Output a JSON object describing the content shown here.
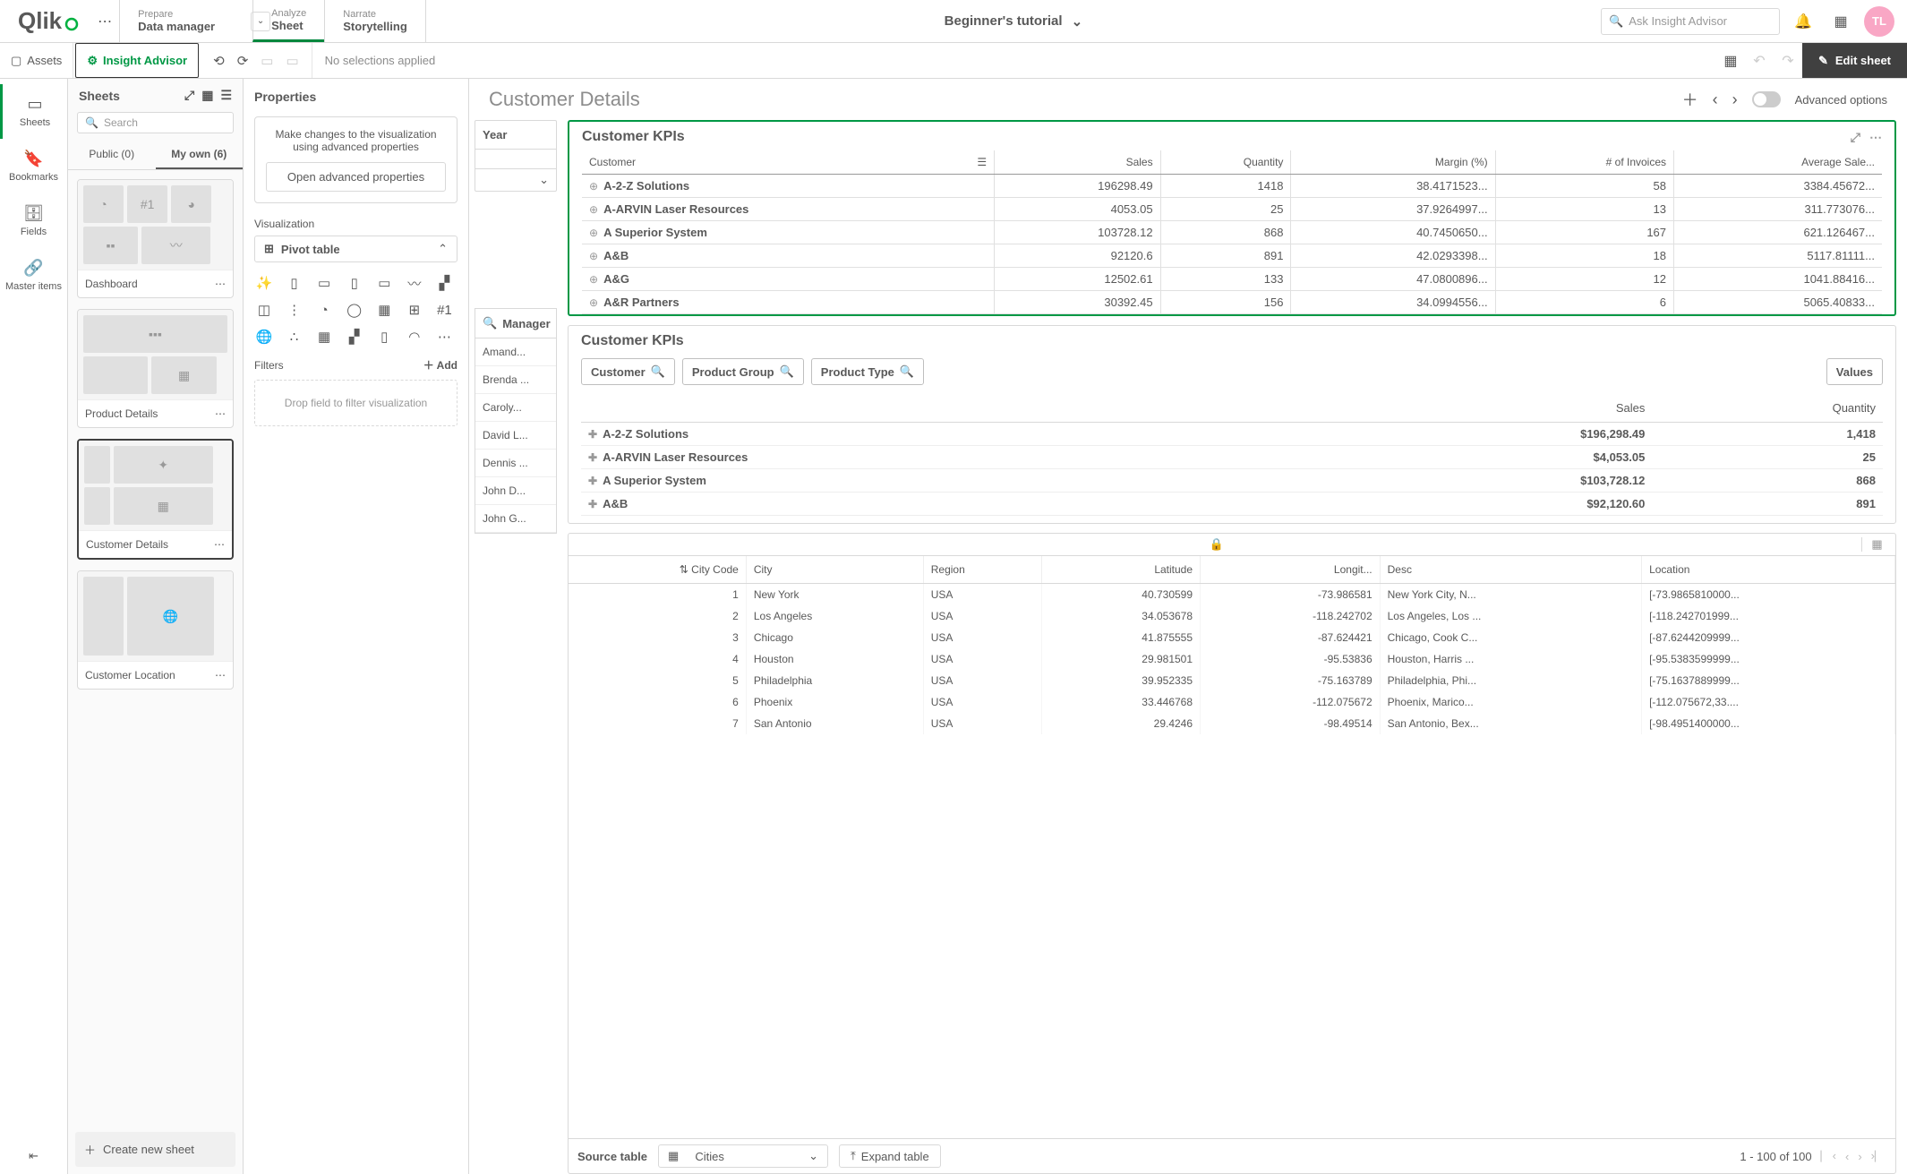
{
  "header": {
    "logo": "Qlik",
    "nav": {
      "prepare": {
        "upper": "Prepare",
        "lower": "Data manager"
      },
      "analyze": {
        "upper": "Analyze",
        "lower": "Sheet"
      },
      "narrate": {
        "upper": "Narrate",
        "lower": "Storytelling"
      }
    },
    "app_title": "Beginner's tutorial",
    "search_placeholder": "Ask Insight Advisor",
    "avatar": "TL"
  },
  "toolbar": {
    "assets": "Assets",
    "insight": "Insight Advisor",
    "no_selections": "No selections applied",
    "edit_sheet": "Edit sheet"
  },
  "rail": {
    "sheets": "Sheets",
    "bookmarks": "Bookmarks",
    "fields": "Fields",
    "master": "Master items"
  },
  "sheets_panel": {
    "title": "Sheets",
    "search_ph": "Search",
    "tab_public": "Public (0)",
    "tab_myown": "My own (6)",
    "cards": {
      "dashboard": "Dashboard",
      "product": "Product Details",
      "customer": "Customer Details",
      "location": "Customer Location"
    },
    "create": "Create new sheet"
  },
  "props": {
    "title": "Properties",
    "card_text": "Make changes to the visualization using advanced properties",
    "open_btn": "Open advanced properties",
    "viz_label": "Visualization",
    "pivot": "Pivot table",
    "filters": "Filters",
    "add": "Add",
    "drop": "Drop field to filter visualization"
  },
  "canvas": {
    "title": "Customer Details",
    "advanced": "Advanced options",
    "year": "Year",
    "manager": "Manager",
    "managers": [
      "Amand...",
      "Brenda ...",
      "Caroly...",
      "David L...",
      "Dennis ...",
      "John D...",
      "John G..."
    ]
  },
  "kpi1": {
    "title": "Customer KPIs",
    "cols": [
      "Customer",
      "Sales",
      "Quantity",
      "Margin (%)",
      "# of Invoices",
      "Average Sale..."
    ],
    "rows": [
      [
        "A-2-Z Solutions",
        "196298.49",
        "1418",
        "38.4171523...",
        "58",
        "3384.45672..."
      ],
      [
        "A-ARVIN Laser Resources",
        "4053.05",
        "25",
        "37.9264997...",
        "13",
        "311.773076..."
      ],
      [
        "A Superior System",
        "103728.12",
        "868",
        "40.7450650...",
        "167",
        "621.126467..."
      ],
      [
        "A&B",
        "92120.6",
        "891",
        "42.0293398...",
        "18",
        "5117.81111..."
      ],
      [
        "A&G",
        "12502.61",
        "133",
        "47.0800896...",
        "12",
        "1041.88416..."
      ],
      [
        "A&R Partners",
        "30392.45",
        "156",
        "34.0994556...",
        "6",
        "5065.40833..."
      ]
    ]
  },
  "kpi2": {
    "title": "Customer KPIs",
    "dims": {
      "customer": "Customer",
      "pg": "Product Group",
      "pt": "Product Type",
      "values": "Values"
    },
    "cols": [
      "Sales",
      "Quantity"
    ],
    "rows": [
      [
        "A-2-Z Solutions",
        "$196,298.49",
        "1,418"
      ],
      [
        "A-ARVIN Laser Resources",
        "$4,053.05",
        "25"
      ],
      [
        "A Superior System",
        "$103,728.12",
        "868"
      ],
      [
        "A&B",
        "$92,120.60",
        "891"
      ]
    ]
  },
  "cities": {
    "cols": [
      "City Code",
      "City",
      "Region",
      "Latitude",
      "Longit...",
      "Desc",
      "Location"
    ],
    "rows": [
      [
        "1",
        "New York",
        "USA",
        "40.730599",
        "-73.986581",
        "New York City, N...",
        "[-73.9865810000..."
      ],
      [
        "2",
        "Los Angeles",
        "USA",
        "34.053678",
        "-118.242702",
        "Los Angeles, Los ...",
        "[-118.242701999..."
      ],
      [
        "3",
        "Chicago",
        "USA",
        "41.875555",
        "-87.624421",
        "Chicago, Cook C...",
        "[-87.6244209999..."
      ],
      [
        "4",
        "Houston",
        "USA",
        "29.981501",
        "-95.53836",
        "Houston, Harris ...",
        "[-95.5383599999..."
      ],
      [
        "5",
        "Philadelphia",
        "USA",
        "39.952335",
        "-75.163789",
        "Philadelphia, Phi...",
        "[-75.1637889999..."
      ],
      [
        "6",
        "Phoenix",
        "USA",
        "33.446768",
        "-112.075672",
        "Phoenix, Marico...",
        "[-112.075672,33...."
      ],
      [
        "7",
        "San Antonio",
        "USA",
        "29.4246",
        "-98.49514",
        "San Antonio, Bex...",
        "[-98.4951400000..."
      ]
    ],
    "source_label": "Source table",
    "source_value": "Cities",
    "expand": "Expand table",
    "pager": "1 - 100 of 100"
  }
}
